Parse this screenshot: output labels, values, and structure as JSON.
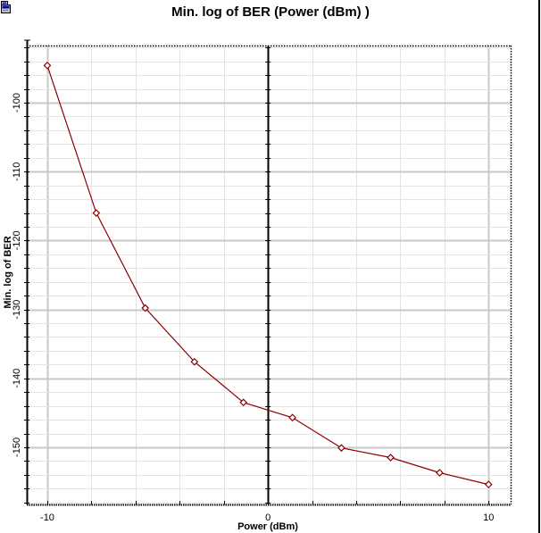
{
  "window": {
    "icon": "chart-window-icon"
  },
  "chart_data": {
    "type": "line",
    "title": "Min. log of BER (Power (dBm) )",
    "xlabel": "Power (dBm)",
    "ylabel": "Min. log of BER",
    "xlim": [
      -10.93,
      11.0
    ],
    "ylim": [
      -158.3,
      -91.7
    ],
    "x_ticks": [
      -10,
      0,
      10
    ],
    "y_ticks": [
      -100,
      -110,
      -120,
      -130,
      -140,
      -150
    ],
    "x_minor_step": 2,
    "y_minor_step": 2,
    "grid": true,
    "legend": null,
    "series": [
      {
        "name": "Min. log of BER",
        "color": "#8b0000",
        "marker": "open-diamond",
        "x": [
          -10,
          -7.78,
          -5.56,
          -3.33,
          -1.11,
          1.11,
          3.33,
          5.56,
          7.78,
          10
        ],
        "y": [
          -94.6,
          -116.0,
          -129.8,
          -137.6,
          -143.5,
          -145.7,
          -150.1,
          -151.5,
          -153.7,
          -155.4
        ]
      }
    ]
  }
}
